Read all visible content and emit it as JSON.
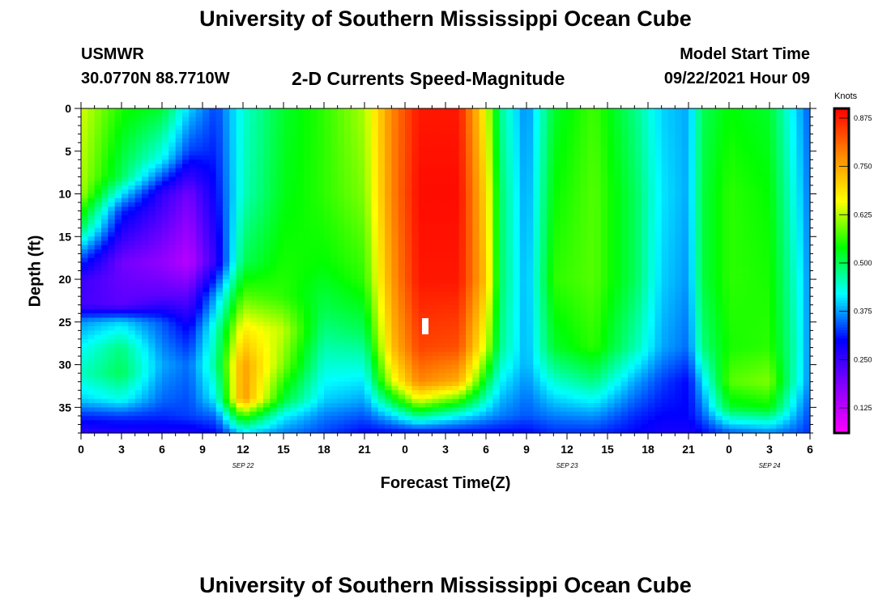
{
  "header": {
    "title": "University of Southern Mississippi Ocean Cube",
    "station": "USMWR",
    "coords": "30.0770N  88.7710W",
    "subtitle": "2-D Currents Speed-Magnitude",
    "model_label": "Model Start Time",
    "model_time": "09/22/2021 Hour 09"
  },
  "footer": {
    "title": "University of Southern Mississippi Ocean Cube"
  },
  "colors": {
    "palette": [
      "#ff00ff",
      "#8800ff",
      "#0000ff",
      "#00ffff",
      "#00ff00",
      "#ffff00",
      "#ff8800",
      "#ff0000"
    ],
    "marker": "#ffffff"
  },
  "chart_data": {
    "type": "heatmap",
    "xlabel": "Forecast Time(Z)",
    "ylabel": "Depth (ft)",
    "x_range_hours": [
      0,
      54
    ],
    "ylim": [
      0,
      38
    ],
    "y_inverted": true,
    "x_tick_labels": [
      "0",
      "3",
      "6",
      "9",
      "12",
      "15",
      "18",
      "21",
      "0",
      "3",
      "6",
      "9",
      "12",
      "15",
      "18",
      "21",
      "0",
      "3",
      "6"
    ],
    "y_ticks": [
      0,
      5,
      10,
      15,
      20,
      25,
      30,
      35
    ],
    "date_labels": [
      {
        "text": "SEP 22",
        "hour": 12
      },
      {
        "text": "SEP 23",
        "hour": 36
      },
      {
        "text": "SEP 24",
        "hour": 51
      }
    ],
    "colorbar": {
      "label": "Knots",
      "min": 0.06,
      "max": 0.9,
      "ticks": [
        "0.875",
        "0.750",
        "0.625",
        "0.500",
        "0.375",
        "0.250",
        "0.125"
      ]
    },
    "marker": {
      "hour": 25.5,
      "depth": 25.5
    },
    "time_columns": [
      {
        "hour": 0,
        "profile": [
          [
            0,
            0.64
          ],
          [
            10,
            0.62
          ],
          [
            14,
            0.5
          ],
          [
            17,
            0.36
          ],
          [
            20,
            0.25
          ],
          [
            23,
            0.24
          ],
          [
            25,
            0.37
          ],
          [
            28,
            0.42
          ],
          [
            31,
            0.45
          ],
          [
            34,
            0.4
          ],
          [
            36,
            0.32
          ],
          [
            38,
            0.26
          ]
        ]
      },
      {
        "hour": 3,
        "profile": [
          [
            0,
            0.55
          ],
          [
            8,
            0.5
          ],
          [
            12,
            0.32
          ],
          [
            18,
            0.2
          ],
          [
            23,
            0.22
          ],
          [
            25,
            0.4
          ],
          [
            28,
            0.48
          ],
          [
            31,
            0.5
          ],
          [
            34,
            0.43
          ],
          [
            36,
            0.33
          ],
          [
            38,
            0.27
          ]
        ]
      },
      {
        "hour": 6,
        "profile": [
          [
            0,
            0.52
          ],
          [
            6,
            0.42
          ],
          [
            10,
            0.26
          ],
          [
            18,
            0.17
          ],
          [
            22,
            0.22
          ],
          [
            25,
            0.34
          ],
          [
            30,
            0.38
          ],
          [
            34,
            0.35
          ],
          [
            36,
            0.32
          ],
          [
            38,
            0.28
          ]
        ]
      },
      {
        "hour": 8,
        "profile": [
          [
            0,
            0.4
          ],
          [
            5,
            0.33
          ],
          [
            10,
            0.2
          ],
          [
            18,
            0.13
          ],
          [
            22,
            0.22
          ],
          [
            26,
            0.3
          ],
          [
            30,
            0.35
          ],
          [
            36,
            0.33
          ],
          [
            38,
            0.28
          ]
        ]
      },
      {
        "hour": 10,
        "profile": [
          [
            0,
            0.33
          ],
          [
            10,
            0.3
          ],
          [
            18,
            0.26
          ],
          [
            22,
            0.38
          ],
          [
            26,
            0.45
          ],
          [
            30,
            0.47
          ],
          [
            34,
            0.42
          ],
          [
            36,
            0.35
          ],
          [
            38,
            0.3
          ]
        ]
      },
      {
        "hour": 12,
        "profile": [
          [
            0,
            0.44
          ],
          [
            10,
            0.45
          ],
          [
            18,
            0.5
          ],
          [
            22,
            0.58
          ],
          [
            26,
            0.68
          ],
          [
            30,
            0.76
          ],
          [
            34,
            0.77
          ],
          [
            36,
            0.58
          ],
          [
            38,
            0.4
          ]
        ]
      },
      {
        "hour": 15,
        "profile": [
          [
            0,
            0.52
          ],
          [
            10,
            0.53
          ],
          [
            18,
            0.55
          ],
          [
            22,
            0.56
          ],
          [
            26,
            0.63
          ],
          [
            30,
            0.6
          ],
          [
            34,
            0.52
          ],
          [
            36,
            0.42
          ],
          [
            38,
            0.36
          ]
        ]
      },
      {
        "hour": 18,
        "profile": [
          [
            0,
            0.56
          ],
          [
            10,
            0.56
          ],
          [
            18,
            0.54
          ],
          [
            24,
            0.5
          ],
          [
            30,
            0.44
          ],
          [
            34,
            0.4
          ],
          [
            36,
            0.36
          ],
          [
            38,
            0.33
          ]
        ]
      },
      {
        "hour": 21,
        "profile": [
          [
            0,
            0.62
          ],
          [
            10,
            0.6
          ],
          [
            20,
            0.56
          ],
          [
            26,
            0.5
          ],
          [
            30,
            0.44
          ],
          [
            34,
            0.38
          ],
          [
            36,
            0.34
          ],
          [
            38,
            0.3
          ]
        ]
      },
      {
        "hour": 23,
        "profile": [
          [
            0,
            0.78
          ],
          [
            10,
            0.78
          ],
          [
            20,
            0.76
          ],
          [
            28,
            0.72
          ],
          [
            32,
            0.64
          ],
          [
            34,
            0.52
          ],
          [
            36,
            0.4
          ],
          [
            38,
            0.3
          ]
        ]
      },
      {
        "hour": 25,
        "profile": [
          [
            0,
            0.88
          ],
          [
            10,
            0.89
          ],
          [
            20,
            0.88
          ],
          [
            28,
            0.84
          ],
          [
            32,
            0.78
          ],
          [
            34,
            0.66
          ],
          [
            36,
            0.48
          ],
          [
            38,
            0.3
          ]
        ]
      },
      {
        "hour": 28,
        "profile": [
          [
            0,
            0.88
          ],
          [
            10,
            0.89
          ],
          [
            20,
            0.88
          ],
          [
            28,
            0.83
          ],
          [
            32,
            0.74
          ],
          [
            34,
            0.58
          ],
          [
            36,
            0.42
          ],
          [
            38,
            0.3
          ]
        ]
      },
      {
        "hour": 30,
        "profile": [
          [
            0,
            0.66
          ],
          [
            10,
            0.7
          ],
          [
            20,
            0.72
          ],
          [
            28,
            0.64
          ],
          [
            32,
            0.52
          ],
          [
            36,
            0.38
          ],
          [
            38,
            0.3
          ]
        ]
      },
      {
        "hour": 31,
        "profile": [
          [
            0,
            0.48
          ],
          [
            10,
            0.5
          ],
          [
            20,
            0.5
          ],
          [
            28,
            0.48
          ],
          [
            32,
            0.42
          ],
          [
            36,
            0.36
          ],
          [
            38,
            0.3
          ]
        ]
      },
      {
        "hour": 33,
        "profile": [
          [
            0,
            0.36
          ],
          [
            10,
            0.37
          ],
          [
            20,
            0.38
          ],
          [
            30,
            0.38
          ],
          [
            36,
            0.34
          ],
          [
            38,
            0.3
          ]
        ]
      },
      {
        "hour": 35,
        "profile": [
          [
            0,
            0.52
          ],
          [
            10,
            0.54
          ],
          [
            20,
            0.56
          ],
          [
            28,
            0.52
          ],
          [
            32,
            0.44
          ],
          [
            36,
            0.36
          ],
          [
            38,
            0.32
          ]
        ]
      },
      {
        "hour": 38,
        "profile": [
          [
            0,
            0.57
          ],
          [
            10,
            0.58
          ],
          [
            20,
            0.58
          ],
          [
            28,
            0.56
          ],
          [
            32,
            0.48
          ],
          [
            36,
            0.37
          ],
          [
            38,
            0.32
          ]
        ]
      },
      {
        "hour": 41,
        "profile": [
          [
            0,
            0.48
          ],
          [
            10,
            0.5
          ],
          [
            20,
            0.5
          ],
          [
            28,
            0.46
          ],
          [
            32,
            0.38
          ],
          [
            36,
            0.32
          ],
          [
            38,
            0.3
          ]
        ]
      },
      {
        "hour": 43,
        "profile": [
          [
            0,
            0.4
          ],
          [
            10,
            0.41
          ],
          [
            20,
            0.4
          ],
          [
            28,
            0.38
          ],
          [
            32,
            0.33
          ],
          [
            36,
            0.3
          ],
          [
            38,
            0.28
          ]
        ]
      },
      {
        "hour": 45,
        "profile": [
          [
            0,
            0.38
          ],
          [
            10,
            0.38
          ],
          [
            20,
            0.37
          ],
          [
            28,
            0.35
          ],
          [
            32,
            0.3
          ],
          [
            36,
            0.3
          ],
          [
            38,
            0.28
          ]
        ]
      },
      {
        "hour": 46,
        "profile": [
          [
            0,
            0.5
          ],
          [
            10,
            0.51
          ],
          [
            20,
            0.51
          ],
          [
            28,
            0.48
          ],
          [
            32,
            0.4
          ],
          [
            36,
            0.34
          ],
          [
            38,
            0.3
          ]
        ]
      },
      {
        "hour": 48,
        "profile": [
          [
            0,
            0.54
          ],
          [
            10,
            0.56
          ],
          [
            20,
            0.56
          ],
          [
            28,
            0.55
          ],
          [
            32,
            0.58
          ],
          [
            35,
            0.52
          ],
          [
            37,
            0.4
          ],
          [
            38,
            0.34
          ]
        ]
      },
      {
        "hour": 51,
        "profile": [
          [
            0,
            0.52
          ],
          [
            10,
            0.54
          ],
          [
            20,
            0.55
          ],
          [
            28,
            0.56
          ],
          [
            32,
            0.6
          ],
          [
            35,
            0.54
          ],
          [
            37,
            0.42
          ],
          [
            38,
            0.36
          ]
        ]
      },
      {
        "hour": 53,
        "profile": [
          [
            0,
            0.4
          ],
          [
            10,
            0.42
          ],
          [
            20,
            0.44
          ],
          [
            28,
            0.45
          ],
          [
            32,
            0.44
          ],
          [
            36,
            0.38
          ],
          [
            38,
            0.34
          ]
        ]
      },
      {
        "hour": 54,
        "profile": [
          [
            0,
            0.34
          ],
          [
            10,
            0.35
          ],
          [
            20,
            0.36
          ],
          [
            28,
            0.36
          ],
          [
            32,
            0.36
          ],
          [
            36,
            0.33
          ],
          [
            38,
            0.32
          ]
        ]
      }
    ]
  }
}
